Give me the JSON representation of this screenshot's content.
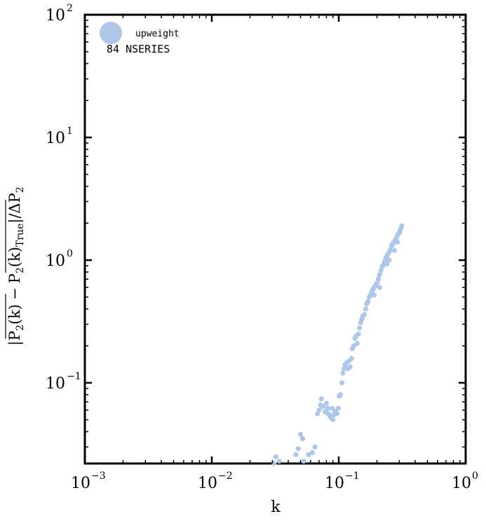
{
  "chart_data": {
    "type": "scatter",
    "xlabel": "k",
    "ylabel_parts": {
      "p2k": "P",
      "sub2": "2",
      "k_paren": "(k)",
      "minus": "−",
      "true_sub": "True",
      "slash_delta": "/ΔP"
    },
    "xscale": "log",
    "yscale": "log",
    "xlim": [
      0.001,
      1
    ],
    "ylim": [
      0.022,
      100
    ],
    "x_ticks": [
      {
        "base": "10",
        "exp": "−3"
      },
      {
        "base": "10",
        "exp": "−2"
      },
      {
        "base": "10",
        "exp": "−1"
      },
      {
        "base": "10",
        "exp": "0"
      }
    ],
    "y_ticks": [
      {
        "base": "10",
        "exp": "−1",
        "value": 0.1
      },
      {
        "base": "10",
        "exp": "0",
        "value": 1
      },
      {
        "base": "10",
        "exp": "1",
        "value": 10
      },
      {
        "base": "10",
        "exp": "2",
        "value": 100
      }
    ],
    "legend": {
      "placement": "top-left",
      "entry": "upweight",
      "subtitle": "84 NSERIES"
    },
    "marker_color": "#aec7e8",
    "series": [
      {
        "name": "upweight",
        "points": [
          [
            0.031,
            0.022
          ],
          [
            0.032,
            0.025
          ],
          [
            0.034,
            0.023
          ],
          [
            0.046,
            0.026
          ],
          [
            0.048,
            0.029
          ],
          [
            0.05,
            0.038
          ],
          [
            0.052,
            0.035
          ],
          [
            0.053,
            0.023
          ],
          [
            0.058,
            0.026
          ],
          [
            0.062,
            0.027
          ],
          [
            0.065,
            0.03
          ],
          [
            0.068,
            0.056
          ],
          [
            0.07,
            0.06
          ],
          [
            0.072,
            0.066
          ],
          [
            0.073,
            0.074
          ],
          [
            0.075,
            0.064
          ],
          [
            0.078,
            0.058
          ],
          [
            0.08,
            0.068
          ],
          [
            0.082,
            0.062
          ],
          [
            0.083,
            0.056
          ],
          [
            0.085,
            0.054
          ],
          [
            0.087,
            0.052
          ],
          [
            0.089,
            0.062
          ],
          [
            0.09,
            0.05
          ],
          [
            0.092,
            0.055
          ],
          [
            0.094,
            0.058
          ],
          [
            0.097,
            0.056
          ],
          [
            0.099,
            0.062
          ],
          [
            0.101,
            0.078
          ],
          [
            0.103,
            0.08
          ],
          [
            0.106,
            0.1
          ],
          [
            0.108,
            0.12
          ],
          [
            0.11,
            0.13
          ],
          [
            0.112,
            0.14
          ],
          [
            0.115,
            0.145
          ],
          [
            0.118,
            0.13
          ],
          [
            0.12,
            0.15
          ],
          [
            0.123,
            0.135
          ],
          [
            0.126,
            0.158
          ],
          [
            0.128,
            0.19
          ],
          [
            0.131,
            0.2
          ],
          [
            0.134,
            0.23
          ],
          [
            0.137,
            0.24
          ],
          [
            0.14,
            0.21
          ],
          [
            0.143,
            0.25
          ],
          [
            0.146,
            0.28
          ],
          [
            0.149,
            0.31
          ],
          [
            0.152,
            0.33
          ],
          [
            0.155,
            0.35
          ],
          [
            0.159,
            0.36
          ],
          [
            0.163,
            0.4
          ],
          [
            0.166,
            0.44
          ],
          [
            0.17,
            0.46
          ],
          [
            0.174,
            0.5
          ],
          [
            0.178,
            0.52
          ],
          [
            0.182,
            0.55
          ],
          [
            0.186,
            0.58
          ],
          [
            0.19,
            0.6
          ],
          [
            0.195,
            0.62
          ],
          [
            0.2,
            0.65
          ],
          [
            0.205,
            0.7
          ],
          [
            0.21,
            0.76
          ],
          [
            0.215,
            0.82
          ],
          [
            0.22,
            0.88
          ],
          [
            0.225,
            0.92
          ],
          [
            0.23,
            0.98
          ],
          [
            0.236,
            1.05
          ],
          [
            0.242,
            1.1
          ],
          [
            0.248,
            1.15
          ],
          [
            0.254,
            1.2
          ],
          [
            0.26,
            1.3
          ],
          [
            0.266,
            1.35
          ],
          [
            0.272,
            1.4
          ],
          [
            0.278,
            1.45
          ],
          [
            0.284,
            1.5
          ],
          [
            0.29,
            1.6
          ],
          [
            0.296,
            1.65
          ],
          [
            0.302,
            1.7
          ],
          [
            0.308,
            1.8
          ],
          [
            0.314,
            1.9
          ],
          [
            0.29,
            1.4
          ],
          [
            0.275,
            1.2
          ],
          [
            0.25,
            1.0
          ],
          [
            0.24,
            0.93
          ],
          [
            0.21,
            0.6
          ],
          [
            0.19,
            0.52
          ]
        ]
      }
    ]
  }
}
